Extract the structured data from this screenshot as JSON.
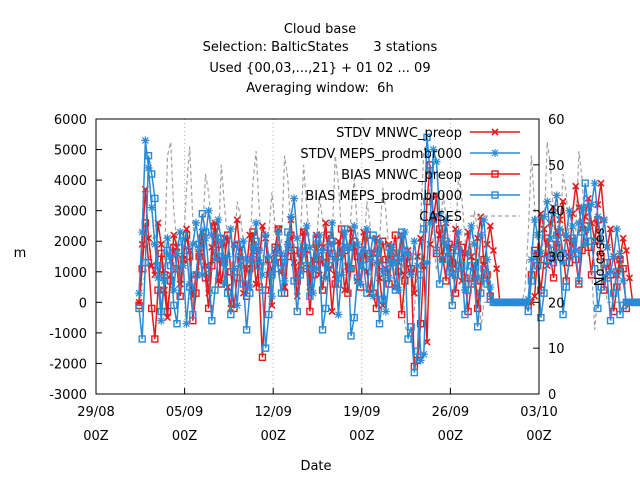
{
  "chart_data": {
    "type": "line",
    "title_lines": [
      "Cloud base",
      "Selection: BalticStates      3 stations",
      "Used {00,03,...,21} + 01 02 ... 09",
      "Averaging window:  6h"
    ],
    "xlabel": "Date",
    "ylabel": "m",
    "y2label": "No cases",
    "ylim": [
      -3000,
      6000
    ],
    "y2lim": [
      0,
      60
    ],
    "x_ticks": [
      {
        "date": "29/08",
        "hour": "00Z"
      },
      {
        "date": "05/09",
        "hour": "00Z"
      },
      {
        "date": "12/09",
        "hour": "00Z"
      },
      {
        "date": "19/09",
        "hour": "00Z"
      },
      {
        "date": "26/09",
        "hour": "00Z"
      },
      {
        "date": "03/10",
        "hour": "00Z"
      }
    ],
    "xlim_days": [
      0,
      35
    ],
    "y_ticks": [
      "6000",
      "5000",
      "4000",
      "3000",
      "2000",
      "1000",
      "0",
      "-1000",
      "-2000",
      "-3000"
    ],
    "y2_ticks": [
      "60",
      "50",
      "40",
      "30",
      "20",
      "10",
      "0"
    ],
    "legend_position": "top-right",
    "grid": true,
    "series": [
      {
        "name": "STDV MNWC_preop",
        "color": "#e41a1c",
        "marker": "x",
        "axis": "y1",
        "day_start": 3.4,
        "step": 0.25,
        "values": [
          0,
          1900,
          3700,
          2100,
          1200,
          900,
          2600,
          1900,
          400,
          -500,
          900,
          2200,
          1800,
          600,
          1400,
          2400,
          1700,
          200,
          900,
          1600,
          2300,
          1200,
          300,
          1800,
          2600,
          700,
          1400,
          2100,
          500,
          -200,
          1900,
          2700,
          1500,
          300,
          1100,
          2200,
          1800,
          600,
          1300,
          2500,
          2100,
          900,
          -100,
          1600,
          2400,
          1000,
          500,
          1900,
          2700,
          1300,
          200,
          1200,
          2300,
          1700,
          500,
          1400,
          2200,
          900,
          1800,
          2600,
          1100,
          -300,
          900,
          2000,
          1600,
          400,
          1200,
          2400,
          1800,
          700,
          1500,
          2300,
          1000,
          300,
          1600,
          2100,
          800,
          -100,
          1100,
          1900,
          1400,
          500,
          1300,
          2200,
          900,
          1700,
          1000,
          300,
          1500,
          2100,
          1200,
          -1300,
          1900,
          2700,
          3500,
          2200,
          1400,
          2600,
          1800,
          1100,
          2400,
          1900,
          700,
          1600,
          2300,
          1500,
          800,
          2100,
          2800,
          1200,
          1900,
          2500,
          1700,
          1100,
          0,
          0,
          0,
          0,
          0,
          0,
          0,
          0,
          0,
          0,
          0,
          200,
          1600,
          2900,
          2400,
          1200,
          2600,
          3100,
          1900,
          2700,
          3300,
          2100,
          1500,
          2900,
          3800,
          3100,
          2400,
          2800,
          3400,
          2600,
          2000,
          3200,
          3900,
          2700,
          1800,
          2400,
          1500,
          900,
          1400,
          2100,
          1700,
          800,
          0,
          0,
          0,
          0,
          0,
          0,
          0,
          0,
          0,
          0,
          0,
          0,
          0,
          0,
          0,
          0,
          300,
          1200,
          2100,
          1600,
          900,
          1800,
          2500,
          1800,
          3500,
          2200,
          4200,
          3100,
          2000
        ]
      },
      {
        "name": "STDV MEPS_prodmbr000",
        "color": "#2a8ad6",
        "marker": "*",
        "axis": "y1",
        "day_start": 3.4,
        "step": 0.25,
        "values": [
          300,
          2300,
          5300,
          4400,
          3100,
          1900,
          800,
          -600,
          700,
          2100,
          1500,
          400,
          1600,
          2300,
          1200,
          -700,
          600,
          1900,
          2600,
          1800,
          900,
          2100,
          3000,
          2200,
          1400,
          2700,
          2000,
          600,
          1500,
          2400,
          1100,
          -100,
          1200,
          2000,
          1400,
          500,
          1800,
          2600,
          1700,
          900,
          2200,
          1500,
          200,
          1300,
          2300,
          1600,
          700,
          1900,
          2800,
          3400,
          2100,
          1000,
          1600,
          2500,
          1800,
          300,
          1100,
          2200,
          1700,
          800,
          1900,
          2600,
          1400,
          -400,
          900,
          2300,
          1800,
          1100,
          2500,
          1900,
          600,
          1700,
          2400,
          1400,
          200,
          1300,
          2000,
          1000,
          -300,
          800,
          1800,
          1300,
          400,
          1400,
          2300,
          1600,
          900,
          2000,
          1200,
          -1900,
          -1700,
          1300,
          2600,
          5000,
          4600,
          2900,
          2000,
          2700,
          1600,
          900,
          1800,
          2300,
          1100,
          400,
          1600,
          2500,
          1900,
          800,
          2200,
          2700,
          1400,
          500,
          0,
          0,
          0,
          0,
          0,
          0,
          0,
          0,
          0,
          0,
          0,
          100,
          1400,
          2700,
          2200,
          1600,
          2800,
          3300,
          2100,
          2900,
          3500,
          2400,
          1300,
          2200,
          3000,
          2500,
          1700,
          2600,
          3100,
          1900,
          2400,
          3200,
          3900,
          2800,
          2000,
          2700,
          1800,
          1000,
          1500,
          2400,
          1600,
          700,
          0,
          0,
          0,
          0,
          0,
          0,
          0,
          0,
          0,
          0,
          0,
          0,
          0,
          0,
          0,
          0,
          700,
          2200,
          3600,
          2800,
          1700,
          2400,
          1600,
          -300,
          -1500,
          2800,
          4300,
          3100,
          0
        ]
      },
      {
        "name": "BIAS MNWC_preop",
        "color": "#e41a1c",
        "marker": "square",
        "axis": "y1",
        "day_start": 3.4,
        "step": 0.25,
        "values": [
          -100,
          1100,
          2600,
          1300,
          -200,
          -1200,
          400,
          1600,
          900,
          -300,
          700,
          1800,
          1100,
          200,
          1400,
          2200,
          1500,
          -600,
          300,
          1500,
          2100,
          800,
          -200,
          1200,
          2500,
          1900,
          600,
          1400,
          2200,
          1000,
          -200,
          800,
          1900,
          1300,
          200,
          1100,
          2300,
          1700,
          500,
          -1800,
          400,
          1400,
          1000,
          1800,
          2400,
          1300,
          300,
          1500,
          2200,
          1700,
          700,
          1600,
          2300,
          1100,
          -300,
          900,
          1900,
          1400,
          400,
          1300,
          2200,
          1600,
          600,
          1500,
          2400,
          1700,
          300,
          1100,
          2000,
          1500,
          500,
          1400,
          2200,
          1600,
          300,
          -200,
          1200,
          2000,
          1400,
          600,
          1600,
          2200,
          1000,
          -400,
          700,
          1500,
          1100,
          -2100,
          -1900,
          -700,
          1200,
          3300,
          4500,
          2800,
          1600,
          2400,
          1500,
          700,
          1900,
          1300,
          300,
          1200,
          1800,
          800,
          -300,
          600,
          1300,
          -200,
          700,
          1400,
          900,
          200,
          0,
          0,
          0,
          0,
          0,
          0,
          0,
          0,
          0,
          0,
          0,
          -100,
          900,
          1700,
          1200,
          400,
          1400,
          2100,
          1500,
          800,
          1800,
          2300,
          1600,
          700,
          1300,
          2000,
          1400,
          600,
          1700,
          2500,
          1800,
          900,
          2000,
          2700,
          1500,
          400,
          1300,
          900,
          -300,
          500,
          1400,
          1100,
          -200,
          0,
          0,
          0,
          0,
          0,
          0,
          0,
          0,
          0,
          0,
          0,
          0,
          0,
          0,
          0,
          0,
          -500,
          900,
          1800,
          1100,
          300,
          1500,
          2400,
          1600,
          700,
          2100,
          3600,
          3200,
          0
        ]
      },
      {
        "name": "BIAS MEPS_prodmbr000",
        "color": "#2a8ad6",
        "marker": "square",
        "axis": "y1",
        "day_start": 3.4,
        "step": 0.25,
        "values": [
          -200,
          -1200,
          1300,
          4800,
          4200,
          3400,
          1200,
          -300,
          800,
          1700,
          1200,
          -100,
          -700,
          1100,
          2200,
          1700,
          500,
          -400,
          900,
          1900,
          2900,
          2300,
          1100,
          -600,
          400,
          1500,
          2100,
          1300,
          300,
          -400,
          1000,
          1900,
          1400,
          600,
          -900,
          300,
          1400,
          2000,
          1200,
          400,
          -1500,
          -400,
          900,
          1700,
          1100,
          300,
          1400,
          2300,
          1800,
          700,
          -300,
          900,
          1800,
          1200,
          200,
          1100,
          2100,
          1500,
          -900,
          -200,
          1200,
          2000,
          1500,
          600,
          1700,
          2400,
          1800,
          -1100,
          -500,
          800,
          1700,
          1200,
          300,
          1500,
          2200,
          1600,
          -700,
          100,
          1000,
          1800,
          1300,
          400,
          1600,
          2300,
          1700,
          -1200,
          -800,
          -2300,
          -1600,
          900,
          2400,
          5400,
          4300,
          2700,
          1700,
          600,
          1400,
          2000,
          1000,
          -100,
          900,
          1700,
          1200,
          -400,
          400,
          1200,
          700,
          -800,
          300,
          1100,
          600,
          100,
          0,
          0,
          0,
          0,
          0,
          0,
          0,
          0,
          0,
          0,
          0,
          -300,
          700,
          1600,
          1200,
          -500,
          300,
          1400,
          1900,
          1300,
          2200,
          1600,
          -400,
          500,
          1500,
          2100,
          1600,
          700,
          2300,
          3900,
          3100,
          2000,
          1100,
          -200,
          500,
          1300,
          800,
          -600,
          300,
          1000,
          -400,
          -100,
          0,
          0,
          0,
          0,
          0,
          0,
          0,
          0,
          0,
          0,
          0,
          0,
          0,
          0,
          0,
          0,
          200,
          1300,
          2500,
          1800,
          900,
          3400,
          2700,
          1500,
          -500,
          -1600,
          1400,
          4300,
          0
        ]
      },
      {
        "name": "CASES",
        "color": "#a0a0a0",
        "marker": "none",
        "dashed": true,
        "axis": "y2",
        "day_start": 3.4,
        "step": 0.25,
        "values": [
          22,
          24,
          26,
          29,
          33,
          35,
          30,
          26,
          28,
          52,
          55,
          40,
          33,
          29,
          31,
          45,
          54,
          38,
          30,
          27,
          33,
          48,
          44,
          36,
          29,
          31,
          50,
          41,
          34,
          28,
          30,
          42,
          39,
          33,
          27,
          30,
          46,
          53,
          40,
          31,
          27,
          35,
          44,
          37,
          29,
          32,
          52,
          47,
          36,
          28,
          26,
          34,
          50,
          41,
          32,
          27,
          31,
          43,
          38,
          30,
          28,
          33,
          52,
          46,
          35,
          27,
          29,
          39,
          47,
          36,
          28,
          31,
          42,
          37,
          29,
          26,
          33,
          45,
          40,
          31,
          27,
          30,
          36,
          32,
          15,
          13,
          12,
          18,
          28,
          38,
          53,
          55,
          42,
          33,
          27,
          30,
          44,
          39,
          31,
          28,
          33,
          48,
          43,
          34,
          27,
          31,
          40,
          36,
          14,
          20,
          20,
          20,
          20,
          20,
          20,
          20,
          20,
          20,
          20,
          20,
          20,
          20,
          23,
          35,
          52,
          41,
          32,
          28,
          36,
          55,
          50,
          38,
          30,
          34,
          48,
          44,
          33,
          29,
          35,
          53,
          47,
          36,
          30,
          28,
          14,
          22,
          29,
          26,
          20,
          20,
          20,
          20,
          20,
          20,
          20,
          20,
          20,
          20,
          20,
          20,
          20,
          20,
          20,
          20,
          21,
          26,
          35,
          29,
          25,
          22,
          28,
          36,
          42,
          35,
          30,
          33,
          29,
          28,
          25,
          22
        ]
      }
    ]
  }
}
